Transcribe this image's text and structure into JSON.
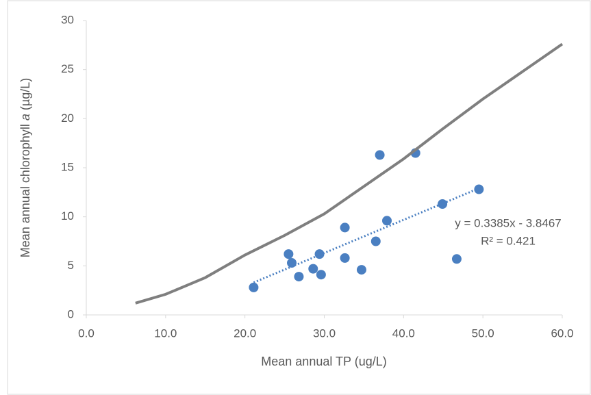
{
  "chart_data": {
    "type": "scatter",
    "x_label": "Mean annual TP (ug/L)",
    "y_label_parts": [
      "Mean annual chlorophyll ",
      "a",
      " (µg/L)"
    ],
    "xlim": [
      0,
      60
    ],
    "xticks": [
      {
        "value": 0,
        "label": "0.0"
      },
      {
        "value": 10,
        "label": "10.0"
      },
      {
        "value": 20,
        "label": "20.0"
      },
      {
        "value": 30,
        "label": "30.0"
      },
      {
        "value": 40,
        "label": "40.0"
      },
      {
        "value": 50,
        "label": "50.0"
      },
      {
        "value": 60,
        "label": "60.0"
      }
    ],
    "ylim": [
      0,
      30
    ],
    "yticks": [
      0,
      5,
      10,
      15,
      20,
      25,
      30
    ],
    "series": [
      {
        "style": "points",
        "color": "#4a7fc1",
        "x": [
          21.1,
          25.5,
          25.9,
          26.8,
          28.6,
          29.4,
          29.6,
          32.6,
          32.6,
          34.7,
          36.5,
          37.0,
          37.9,
          41.5,
          44.9,
          46.7,
          49.5
        ],
        "values": [
          2.8,
          6.2,
          5.3,
          3.9,
          4.7,
          6.2,
          4.1,
          5.8,
          8.9,
          4.6,
          7.5,
          16.3,
          9.6,
          16.5,
          11.3,
          5.7,
          12.8
        ]
      },
      {
        "style": "solid-line",
        "color": "#7f7f7f",
        "x": [
          6.2,
          10,
          15,
          20,
          25,
          30,
          35,
          40,
          45,
          50,
          55,
          60
        ],
        "values": [
          1.2,
          2.1,
          3.8,
          6.1,
          8.1,
          10.3,
          13.1,
          15.9,
          19.0,
          22.0,
          24.8,
          27.6
        ]
      },
      {
        "style": "dotted-line",
        "color": "#4a7fc1",
        "x": [
          21.1,
          49.5
        ],
        "values": [
          3.3,
          12.9
        ]
      }
    ],
    "annotations": [
      "y = 0.3385x - 3.8467",
      "R² = 0.421"
    ]
  }
}
